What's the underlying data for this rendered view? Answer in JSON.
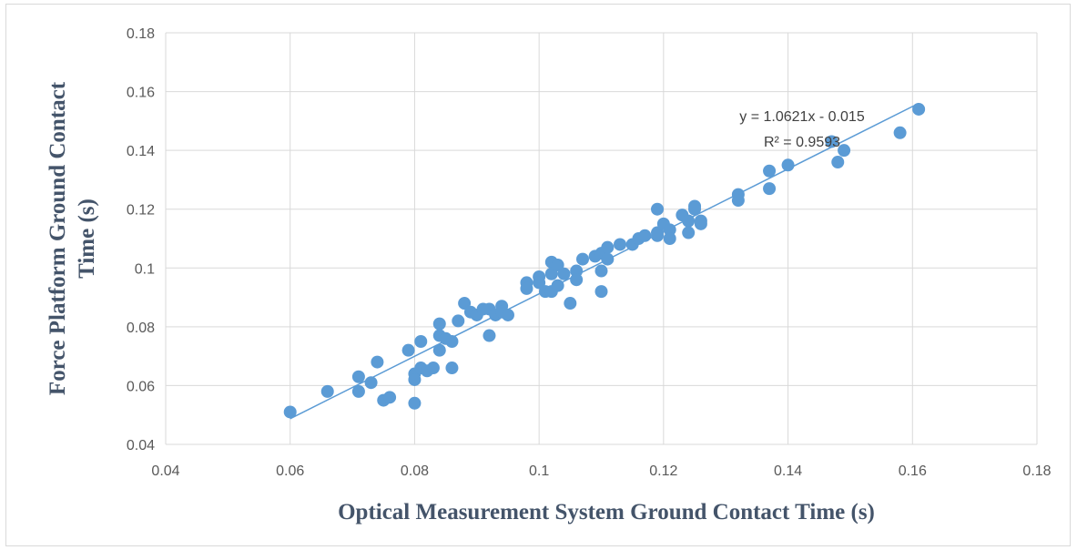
{
  "chart_data": {
    "type": "scatter",
    "title": "",
    "xlabel": "Optical Measurement System Ground Contact Time (s)",
    "ylabel_lines": [
      "Force Platform Ground Contact",
      "Time (s)"
    ],
    "xlim": [
      0.04,
      0.18
    ],
    "ylim": [
      0.04,
      0.18
    ],
    "xticks": [
      "0.04",
      "0.06",
      "0.08",
      "0.1",
      "0.12",
      "0.14",
      "0.16",
      "0.18"
    ],
    "yticks": [
      "0.04",
      "0.06",
      "0.08",
      "0.1",
      "0.12",
      "0.14",
      "0.16",
      "0.18"
    ],
    "grid": true,
    "legend": "none",
    "marker_color": "#5b9bd5",
    "trendline": {
      "slope": 1.0621,
      "intercept": -0.015,
      "x_range": [
        0.06,
        0.161
      ],
      "equation_label": "y = 1.0621x - 0.015",
      "r2_label": "R² = 0.9593"
    },
    "points": [
      [
        0.06,
        0.051
      ],
      [
        0.066,
        0.058
      ],
      [
        0.071,
        0.063
      ],
      [
        0.071,
        0.058
      ],
      [
        0.073,
        0.061
      ],
      [
        0.074,
        0.068
      ],
      [
        0.075,
        0.055
      ],
      [
        0.076,
        0.056
      ],
      [
        0.079,
        0.072
      ],
      [
        0.08,
        0.064
      ],
      [
        0.08,
        0.062
      ],
      [
        0.08,
        0.054
      ],
      [
        0.081,
        0.075
      ],
      [
        0.081,
        0.066
      ],
      [
        0.082,
        0.065
      ],
      [
        0.083,
        0.066
      ],
      [
        0.084,
        0.081
      ],
      [
        0.084,
        0.077
      ],
      [
        0.084,
        0.072
      ],
      [
        0.085,
        0.076
      ],
      [
        0.086,
        0.075
      ],
      [
        0.086,
        0.066
      ],
      [
        0.087,
        0.082
      ],
      [
        0.088,
        0.088
      ],
      [
        0.089,
        0.085
      ],
      [
        0.09,
        0.084
      ],
      [
        0.091,
        0.086
      ],
      [
        0.092,
        0.086
      ],
      [
        0.092,
        0.077
      ],
      [
        0.093,
        0.084
      ],
      [
        0.094,
        0.087
      ],
      [
        0.094,
        0.085
      ],
      [
        0.095,
        0.084
      ],
      [
        0.098,
        0.095
      ],
      [
        0.098,
        0.093
      ],
      [
        0.1,
        0.097
      ],
      [
        0.1,
        0.095
      ],
      [
        0.101,
        0.092
      ],
      [
        0.102,
        0.102
      ],
      [
        0.102,
        0.098
      ],
      [
        0.102,
        0.092
      ],
      [
        0.103,
        0.101
      ],
      [
        0.103,
        0.094
      ],
      [
        0.104,
        0.098
      ],
      [
        0.105,
        0.088
      ],
      [
        0.106,
        0.099
      ],
      [
        0.106,
        0.096
      ],
      [
        0.107,
        0.103
      ],
      [
        0.109,
        0.104
      ],
      [
        0.11,
        0.105
      ],
      [
        0.11,
        0.099
      ],
      [
        0.11,
        0.092
      ],
      [
        0.111,
        0.107
      ],
      [
        0.111,
        0.103
      ],
      [
        0.113,
        0.108
      ],
      [
        0.115,
        0.108
      ],
      [
        0.116,
        0.11
      ],
      [
        0.117,
        0.111
      ],
      [
        0.119,
        0.12
      ],
      [
        0.119,
        0.112
      ],
      [
        0.119,
        0.111
      ],
      [
        0.12,
        0.115
      ],
      [
        0.121,
        0.113
      ],
      [
        0.121,
        0.11
      ],
      [
        0.123,
        0.118
      ],
      [
        0.124,
        0.116
      ],
      [
        0.124,
        0.112
      ],
      [
        0.125,
        0.121
      ],
      [
        0.125,
        0.12
      ],
      [
        0.126,
        0.116
      ],
      [
        0.126,
        0.115
      ],
      [
        0.132,
        0.125
      ],
      [
        0.132,
        0.123
      ],
      [
        0.137,
        0.133
      ],
      [
        0.137,
        0.127
      ],
      [
        0.14,
        0.135
      ],
      [
        0.147,
        0.143
      ],
      [
        0.148,
        0.136
      ],
      [
        0.149,
        0.14
      ],
      [
        0.158,
        0.146
      ],
      [
        0.161,
        0.154
      ]
    ]
  }
}
